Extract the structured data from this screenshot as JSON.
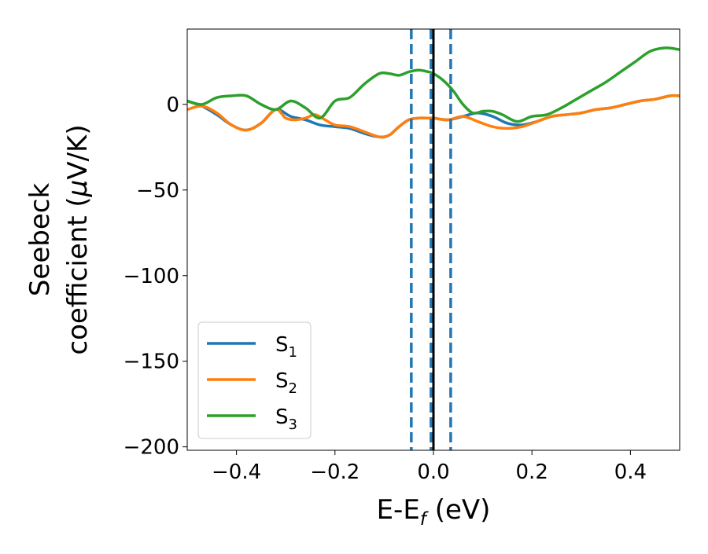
{
  "chart_data": {
    "type": "line",
    "xlabel_main": "E-E",
    "xlabel_sub": "f",
    "xlabel_unit": " (eV)",
    "ylabel_line1": "Seebeck",
    "ylabel_line2_pre": "coefficient  (",
    "ylabel_mu": "μ",
    "ylabel_line2_post": "V/K)",
    "xlim": [
      -0.5,
      0.5
    ],
    "ylim": [
      -202,
      44
    ],
    "x_ticks": [
      -0.4,
      -0.2,
      0.0,
      0.2,
      0.4
    ],
    "x_tick_labels": [
      "−0.4",
      "−0.2",
      "0.0",
      "0.2",
      "0.4"
    ],
    "y_ticks": [
      0,
      -50,
      -100,
      -150,
      -200
    ],
    "y_tick_labels": [
      "0",
      "−50",
      "−100",
      "−150",
      "−200"
    ],
    "grid": false,
    "legend_position": "lower-left",
    "vertical_lines": [
      {
        "x": -0.045,
        "style": "dashed",
        "color": "#1f77b4"
      },
      {
        "x": -0.005,
        "style": "dashed",
        "color": "#1f77b4"
      },
      {
        "x": 0.035,
        "style": "dashed",
        "color": "#1f77b4"
      },
      {
        "x": 0.0,
        "style": "solid",
        "color": "#000000"
      }
    ],
    "series": [
      {
        "name": "S",
        "sub": "1",
        "color": "#1f77b4",
        "x": [
          -0.5,
          -0.47,
          -0.44,
          -0.41,
          -0.38,
          -0.35,
          -0.32,
          -0.29,
          -0.26,
          -0.23,
          -0.2,
          -0.17,
          -0.14,
          -0.11,
          -0.09,
          -0.07,
          -0.05,
          -0.03,
          -0.01,
          0.0,
          0.03,
          0.06,
          0.09,
          0.12,
          0.15,
          0.18,
          0.21,
          0.24,
          0.27,
          0.3,
          0.33,
          0.36,
          0.39,
          0.42,
          0.45,
          0.48,
          0.5
        ],
        "y": [
          2,
          -1,
          -6,
          -12,
          -15,
          -11,
          -3,
          -7,
          -9,
          -12,
          -13,
          -14,
          -17,
          -19,
          -18,
          -13,
          -9,
          -8,
          -8,
          -8,
          -9,
          -7,
          -5,
          -7,
          -11,
          -12,
          -10,
          -7,
          -6,
          -5,
          -3,
          -2,
          0,
          2,
          3,
          5,
          5
        ]
      },
      {
        "name": "S",
        "sub": "2",
        "color": "#ff7f0e",
        "x": [
          -0.5,
          -0.47,
          -0.44,
          -0.41,
          -0.38,
          -0.35,
          -0.32,
          -0.3,
          -0.28,
          -0.26,
          -0.24,
          -0.22,
          -0.2,
          -0.17,
          -0.14,
          -0.11,
          -0.09,
          -0.07,
          -0.05,
          -0.03,
          -0.01,
          0.0,
          0.03,
          0.06,
          0.09,
          0.12,
          0.15,
          0.18,
          0.21,
          0.24,
          0.27,
          0.3,
          0.33,
          0.36,
          0.39,
          0.42,
          0.45,
          0.48,
          0.5
        ],
        "y": [
          -3,
          -1,
          -5,
          -12,
          -15,
          -11,
          -3,
          -8,
          -9,
          -8,
          -6,
          -9,
          -12,
          -13,
          -16,
          -19,
          -18,
          -13,
          -9,
          -8,
          -8,
          -8,
          -9,
          -7,
          -10,
          -13,
          -14,
          -13,
          -10,
          -7,
          -6,
          -5,
          -3,
          -2,
          0,
          2,
          3,
          5,
          5
        ]
      },
      {
        "name": "S",
        "sub": "3",
        "color": "#2ca02c",
        "x": [
          -0.5,
          -0.47,
          -0.44,
          -0.41,
          -0.38,
          -0.35,
          -0.32,
          -0.29,
          -0.26,
          -0.23,
          -0.2,
          -0.17,
          -0.14,
          -0.11,
          -0.09,
          -0.07,
          -0.05,
          -0.03,
          -0.01,
          0.0,
          0.02,
          0.04,
          0.06,
          0.08,
          0.1,
          0.12,
          0.14,
          0.17,
          0.2,
          0.23,
          0.26,
          0.29,
          0.32,
          0.35,
          0.38,
          0.41,
          0.44,
          0.47,
          0.5
        ],
        "y": [
          2,
          0,
          4,
          5,
          5,
          0,
          -3,
          2,
          -2,
          -8,
          2,
          4,
          12,
          18,
          18,
          17,
          19,
          20,
          19,
          18,
          14,
          8,
          0,
          -5,
          -4,
          -4,
          -6,
          -10,
          -7,
          -6,
          -2,
          3,
          8,
          13,
          19,
          25,
          31,
          33,
          32
        ]
      }
    ]
  }
}
